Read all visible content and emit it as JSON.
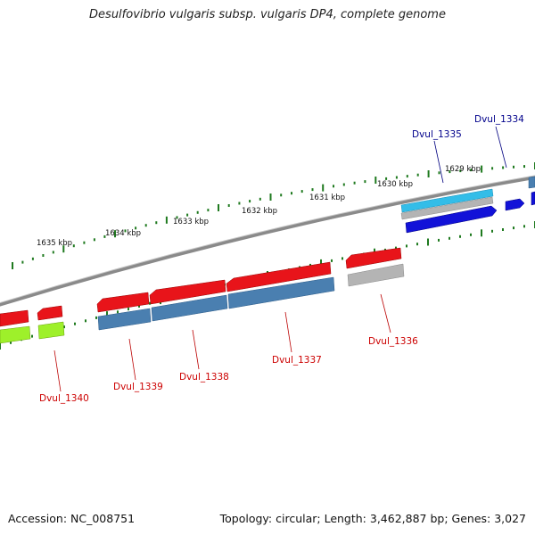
{
  "title": "Desulfovibrio vulgaris subsp. vulgaris DP4, complete genome",
  "footer": {
    "accession": "Accession: NC_008751",
    "summary": "Topology: circular; Length: 3,462,887 bp; Genes: 3,027"
  },
  "colors": {
    "backbone": "#8a8a8a",
    "tick": "#1f7a1f",
    "red": "#e8141a",
    "steel": "#4a7fb0",
    "grey": "#b4b4b4",
    "cyan": "#33bde8",
    "blue": "#1212d8",
    "lime": "#9ef02a",
    "label_red": "#cc0000",
    "label_blue": "#00008b"
  },
  "kbp_labels": [
    "1629 kbp",
    "1630 kbp",
    "1631 kbp",
    "1632 kbp",
    "1633 kbp",
    "1634 kbp",
    "1635 kbp"
  ],
  "gene_labels": [
    {
      "text": "Dvul_1334",
      "color": "blue"
    },
    {
      "text": "Dvul_1335",
      "color": "blue"
    },
    {
      "text": "Dvul_1336",
      "color": "red"
    },
    {
      "text": "Dvul_1337",
      "color": "red"
    },
    {
      "text": "Dvul_1338",
      "color": "red"
    },
    {
      "text": "Dvul_1339",
      "color": "red"
    },
    {
      "text": "Dvul_1340",
      "color": "red"
    }
  ]
}
